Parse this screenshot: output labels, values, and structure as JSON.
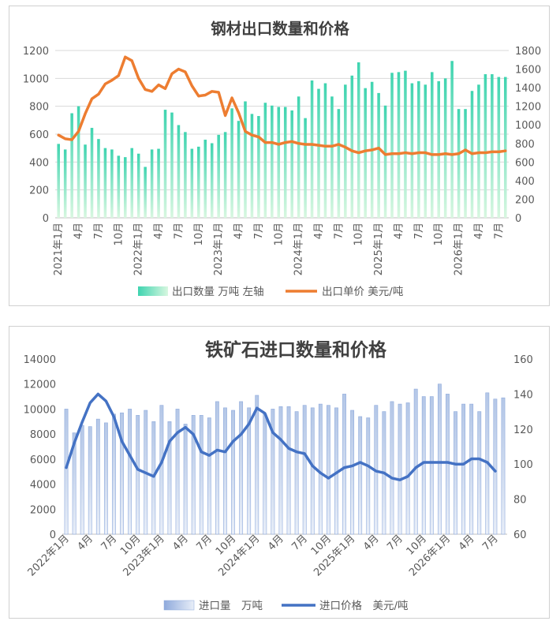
{
  "chart_data": [
    {
      "type": "bar+line",
      "title": "钢材出口数量和价格",
      "x_labels": [
        "2021年1月",
        "4月",
        "7月",
        "10月",
        "2022年1月",
        "4月",
        "7月",
        "10月",
        "2023年1月",
        "4月",
        "7月",
        "10月",
        "2024年1月",
        "4月",
        "7月",
        "10月",
        "2025年1月",
        "4月",
        "7月",
        "10月",
        "2026年1月",
        "4月",
        "7月"
      ],
      "y_left_ticks": [
        "0",
        "200",
        "400",
        "600",
        "800",
        "1000",
        "1200"
      ],
      "y_right_ticks": [
        "0",
        "200",
        "400",
        "600",
        "800",
        "1000",
        "1200",
        "1400",
        "1600",
        "1800"
      ],
      "ylim_left": [
        0,
        1200
      ],
      "ylim_right": [
        0,
        1800
      ],
      "legend_position": "bottom",
      "series": [
        {
          "name": "出口数量 万吨 左轴",
          "kind": "bar",
          "axis": "left",
          "color": "#4fd8b8",
          "values": [
            530,
            490,
            750,
            800,
            525,
            645,
            565,
            500,
            490,
            445,
            435,
            500,
            460,
            365,
            490,
            495,
            775,
            755,
            665,
            615,
            495,
            510,
            560,
            535,
            595,
            615,
            785,
            695,
            835,
            745,
            730,
            825,
            805,
            795,
            795,
            770,
            870,
            715,
            985,
            925,
            965,
            870,
            780,
            955,
            1020,
            1115,
            930,
            975,
            895,
            805,
            1040,
            1045,
            1055,
            965,
            980,
            955,
            1045,
            980,
            1000,
            1125,
            780,
            780,
            910,
            955,
            1030,
            1030,
            1010,
            1010
          ]
        },
        {
          "name": "出口单价 美元/吨",
          "kind": "line",
          "axis": "right",
          "color": "#ed7d31",
          "values": [
            890,
            850,
            840,
            930,
            1120,
            1280,
            1330,
            1440,
            1480,
            1530,
            1730,
            1690,
            1500,
            1380,
            1360,
            1430,
            1390,
            1550,
            1600,
            1570,
            1420,
            1310,
            1320,
            1360,
            1350,
            1100,
            1290,
            1130,
            930,
            890,
            870,
            810,
            810,
            790,
            810,
            820,
            800,
            790,
            790,
            780,
            770,
            770,
            790,
            760,
            720,
            700,
            720,
            730,
            750,
            680,
            690,
            690,
            700,
            690,
            700,
            700,
            680,
            680,
            690,
            680,
            690,
            730,
            690,
            700,
            700,
            710,
            710,
            720
          ]
        }
      ]
    },
    {
      "type": "bar+line",
      "title": "铁矿石进口数量和价格",
      "x_labels": [
        "2022年1月",
        "4月",
        "7月",
        "10月",
        "2023年1月",
        "4月",
        "7月",
        "10月",
        "2024年1月",
        "4月",
        "7月",
        "10月",
        "2025年1月",
        "4月",
        "7月",
        "10月",
        "2026年1月",
        "4月",
        "7月"
      ],
      "y_left_ticks": [
        "0",
        "2000",
        "4000",
        "6000",
        "8000",
        "10000",
        "12000",
        "14000"
      ],
      "y_right_ticks": [
        "60",
        "80",
        "100",
        "120",
        "140",
        "160"
      ],
      "ylim_left": [
        0,
        14000
      ],
      "ylim_right": [
        60,
        160
      ],
      "legend_position": "bottom",
      "series": [
        {
          "name": "进口量　万吨",
          "kind": "bar",
          "axis": "left",
          "color": "#8faadc",
          "values": [
            10000,
            8100,
            8700,
            8600,
            9200,
            8900,
            9600,
            9700,
            10000,
            9500,
            9900,
            9000,
            10300,
            9000,
            10000,
            8800,
            9500,
            9500,
            9300,
            10600,
            10100,
            9900,
            10600,
            10100,
            11100,
            9600,
            10000,
            10200,
            10200,
            9800,
            10300,
            10100,
            10400,
            10300,
            10100,
            11200,
            9900,
            9400,
            9300,
            10300,
            9800,
            10600,
            10400,
            10500,
            11600,
            11000,
            11000,
            12000,
            11200,
            9800,
            10400,
            10400,
            9800,
            11300,
            10800,
            10900
          ]
        },
        {
          "name": "进口价格　美元/吨",
          "kind": "line",
          "axis": "right",
          "color": "#4472c4",
          "values": [
            98,
            112,
            124,
            135,
            140,
            136,
            127,
            113,
            105,
            97,
            95,
            93,
            101,
            113,
            118,
            121,
            117,
            107,
            105,
            108,
            107,
            113,
            117,
            123,
            132,
            129,
            118,
            114,
            109,
            107,
            106,
            99,
            95,
            92,
            95,
            98,
            99,
            101,
            99,
            96,
            95,
            92,
            91,
            93,
            98,
            101,
            101,
            101,
            101,
            100,
            100,
            103,
            103,
            101,
            96
          ]
        }
      ]
    }
  ]
}
